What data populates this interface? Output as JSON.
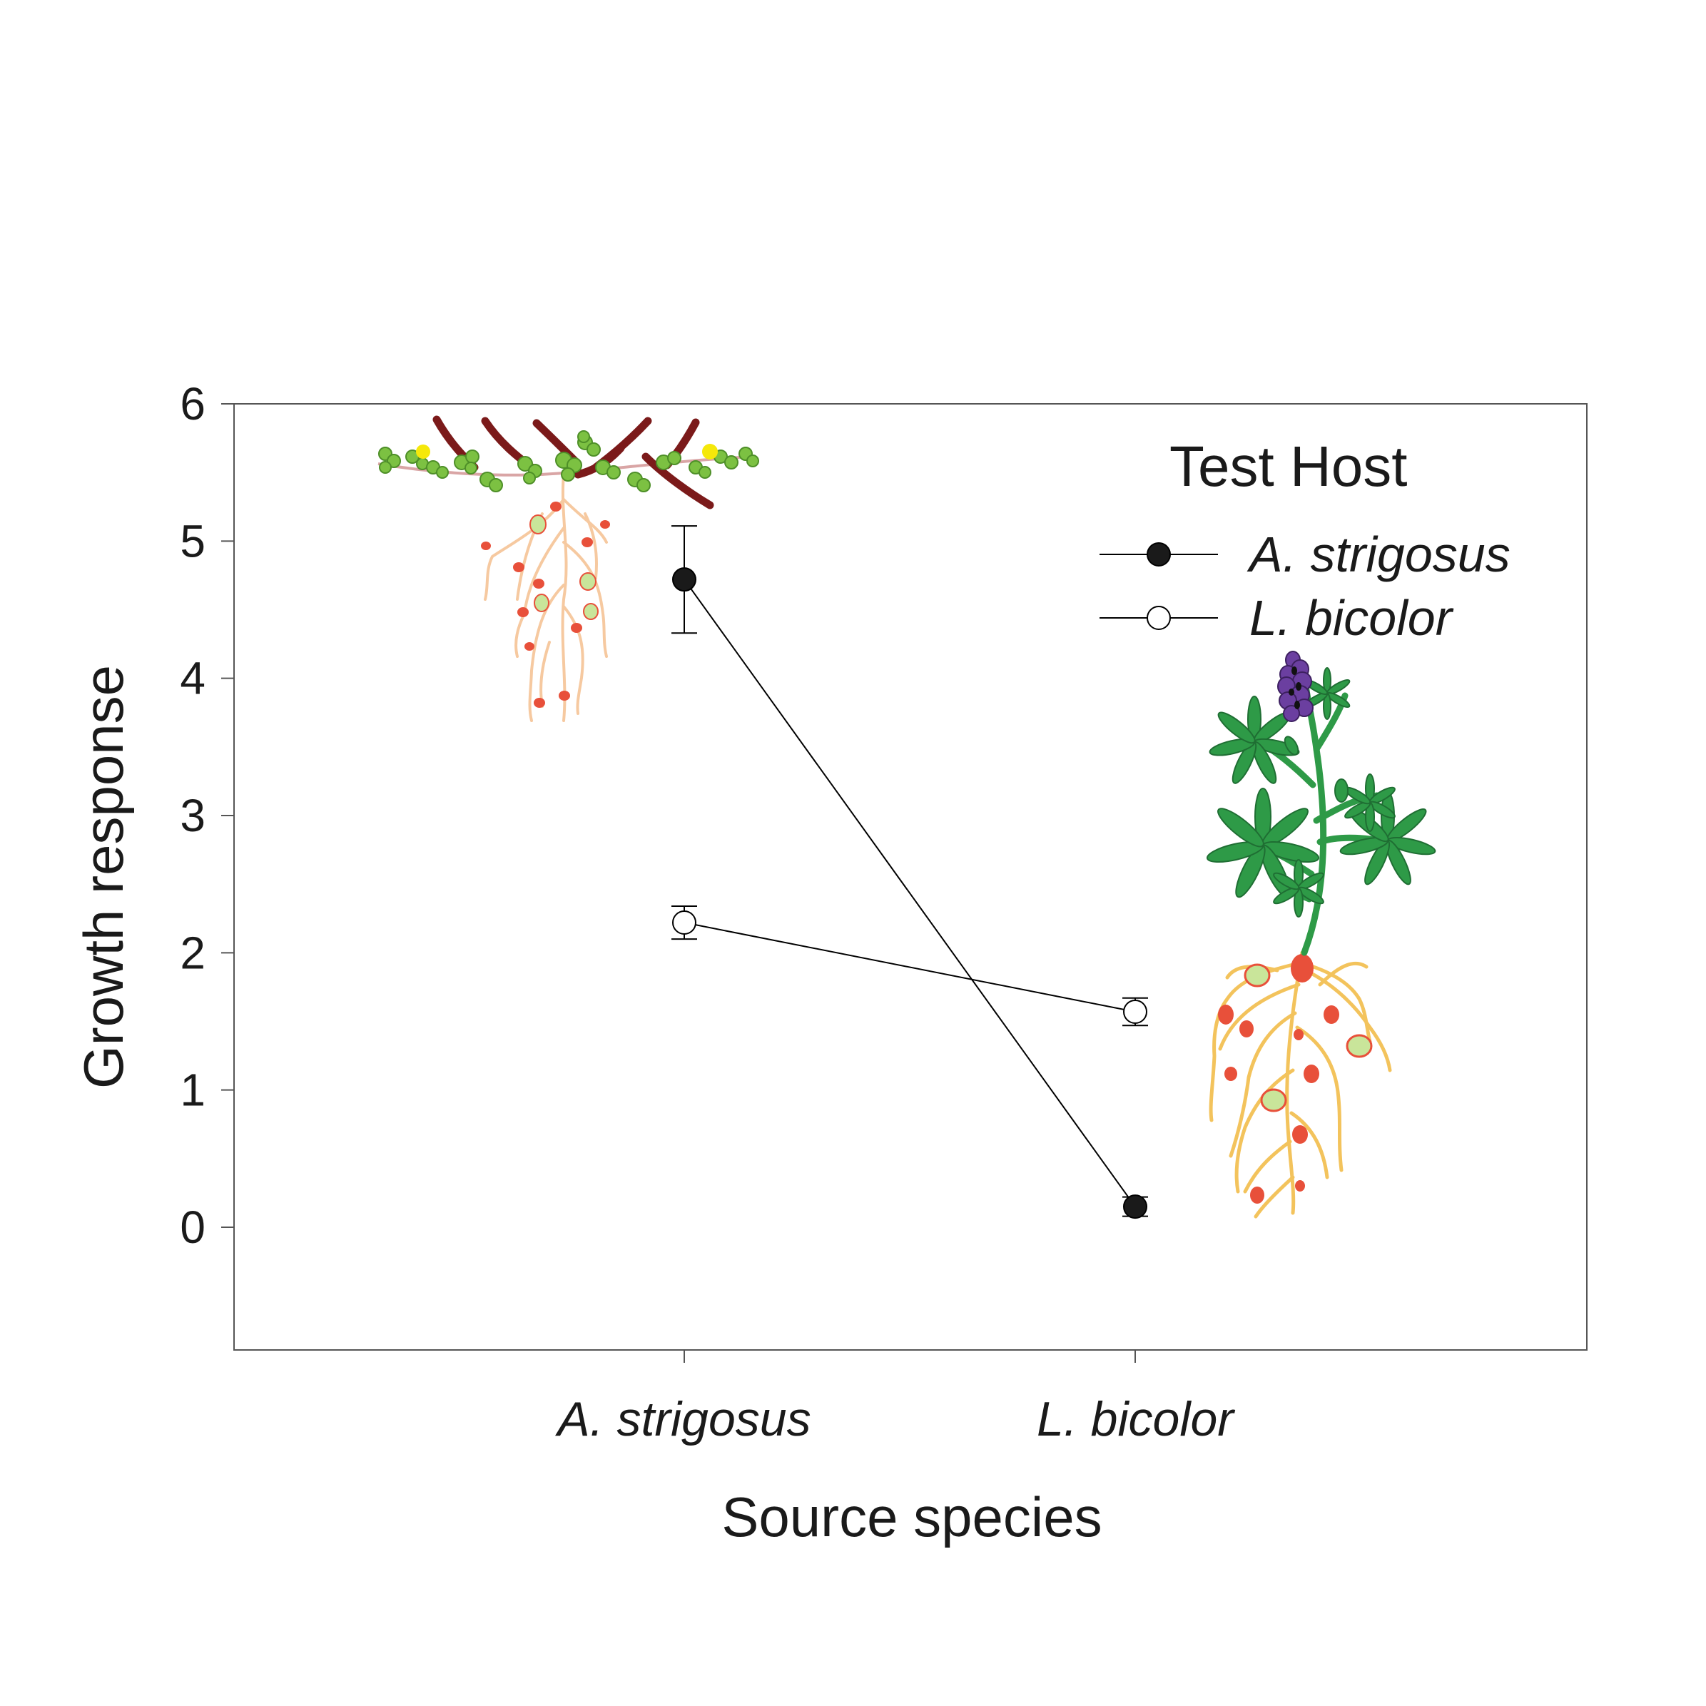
{
  "chart_data": {
    "type": "line",
    "categories": [
      "A. strigosus",
      "L. bicolor"
    ],
    "xlabel": "Source species",
    "ylabel": "Growth response",
    "ylim": [
      -0.9,
      6
    ],
    "yticks": [
      0,
      1,
      2,
      3,
      4,
      5,
      6
    ],
    "legend": {
      "title": "Test Host",
      "placement": "top-right"
    },
    "series": [
      {
        "name": "A. strigosus",
        "marker": "filled-circle",
        "values": [
          4.72,
          0.15
        ],
        "error": [
          0.39,
          0.07
        ]
      },
      {
        "name": "L. bicolor",
        "marker": "open-circle",
        "values": [
          2.22,
          1.57
        ],
        "error": [
          0.12,
          0.1
        ]
      }
    ],
    "illustrations": [
      "a-strigosus-plant-illustration",
      "l-bicolor-plant-illustration"
    ],
    "colors": {
      "axis": "#555555",
      "line": "#000000",
      "filled_marker": "#1a1a1a",
      "open_marker": "#ffffff",
      "leaf_green": "#7cc142",
      "lupine_green": "#2e9a47",
      "lupine_flower": "#6b3fa0",
      "pod_red": "#7b1a1a",
      "root_pale": "#f6c9a0",
      "root_gold": "#f3c35c",
      "nodule_red": "#e8503a"
    }
  }
}
